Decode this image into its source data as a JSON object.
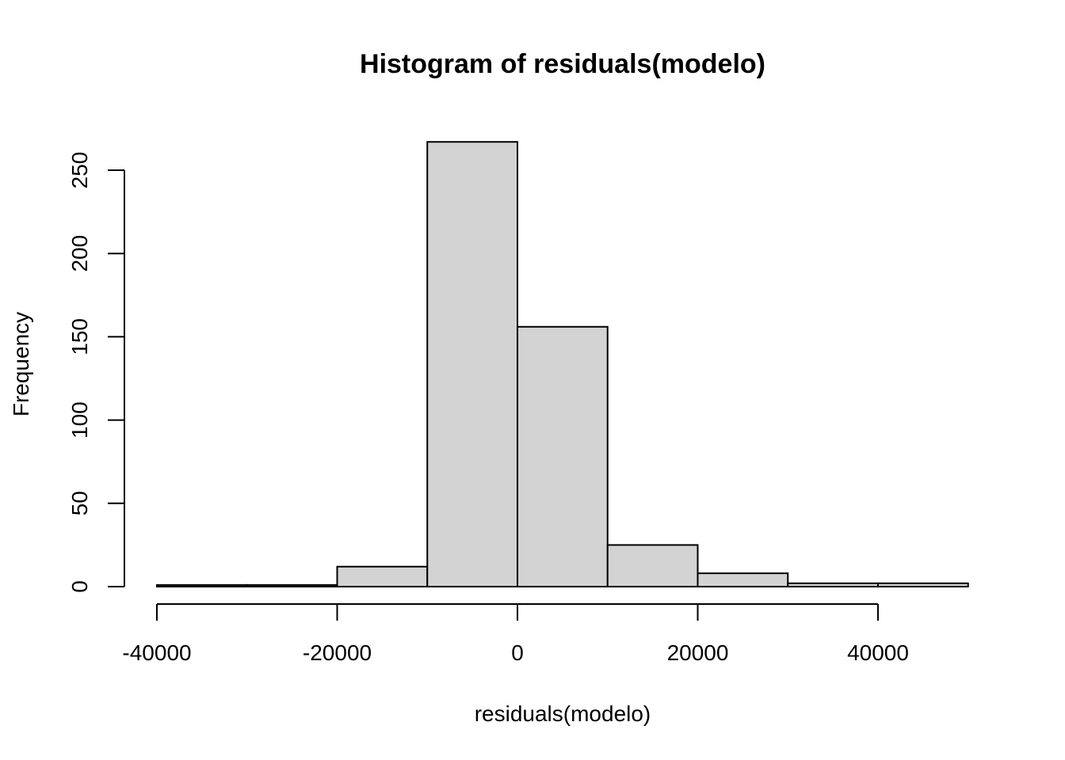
{
  "chart_data": {
    "type": "bar",
    "title": "Histogram of residuals(modelo)",
    "xlabel": "residuals(modelo)",
    "ylabel": "Frequency",
    "bins": [
      {
        "x0": -40000,
        "x1": -30000,
        "count": 1
      },
      {
        "x0": -30000,
        "x1": -20000,
        "count": 1
      },
      {
        "x0": -20000,
        "x1": -10000,
        "count": 12
      },
      {
        "x0": -10000,
        "x1": 0,
        "count": 267
      },
      {
        "x0": 0,
        "x1": 10000,
        "count": 156
      },
      {
        "x0": 10000,
        "x1": 20000,
        "count": 25
      },
      {
        "x0": 20000,
        "x1": 30000,
        "count": 8
      },
      {
        "x0": 30000,
        "x1": 40000,
        "count": 2
      },
      {
        "x0": 40000,
        "x1": 50000,
        "count": 2
      }
    ],
    "x_ticks": [
      -40000,
      -20000,
      0,
      20000,
      40000
    ],
    "x_tick_labels": [
      "-40000",
      "-20000",
      "0",
      "20000",
      "40000"
    ],
    "y_ticks": [
      0,
      50,
      100,
      150,
      200,
      250
    ],
    "y_tick_labels": [
      "0",
      "50",
      "100",
      "150",
      "200",
      "250"
    ],
    "xlim": [
      -40000,
      50000
    ],
    "ylim": [
      0,
      267
    ],
    "bar_fill": "#d3d3d3",
    "bar_stroke": "#000000",
    "grid": false,
    "legend": "none"
  }
}
